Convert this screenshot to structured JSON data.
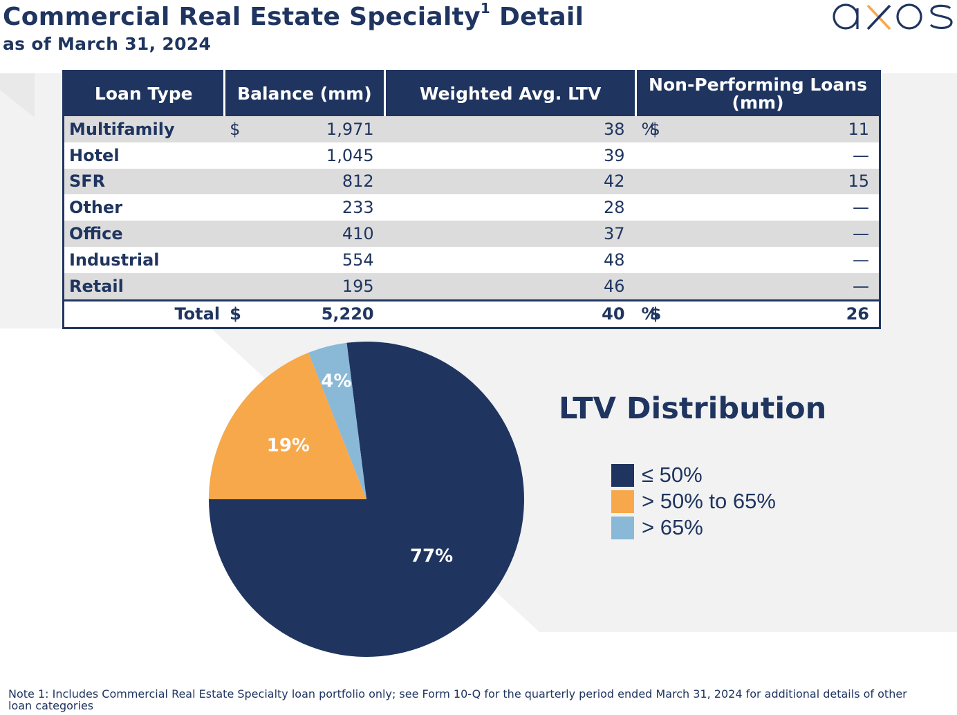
{
  "header": {
    "title": "Commercial Real Estate Specialty",
    "title_superscript": "1",
    "title_suffix": "Detail",
    "subtitle": "as of March 31, 2024",
    "logo_text": "axos"
  },
  "table": {
    "columns": [
      "Loan Type",
      "Balance (mm)",
      "Weighted Avg. LTV",
      "Non-Performing Loans (mm)"
    ],
    "rows": [
      {
        "type": "Multifamily",
        "cur1": "$",
        "balance": "1,971",
        "ltv": "38",
        "pct": "%",
        "cur2": "$",
        "npl": "11"
      },
      {
        "type": "Hotel",
        "cur1": "",
        "balance": "1,045",
        "ltv": "39",
        "pct": "",
        "cur2": "",
        "npl": "—"
      },
      {
        "type": "SFR",
        "cur1": "",
        "balance": "812",
        "ltv": "42",
        "pct": "",
        "cur2": "",
        "npl": "15"
      },
      {
        "type": "Other",
        "cur1": "",
        "balance": "233",
        "ltv": "28",
        "pct": "",
        "cur2": "",
        "npl": "—"
      },
      {
        "type": "Office",
        "cur1": "",
        "balance": "410",
        "ltv": "37",
        "pct": "",
        "cur2": "",
        "npl": "—"
      },
      {
        "type": "Industrial",
        "cur1": "",
        "balance": "554",
        "ltv": "48",
        "pct": "",
        "cur2": "",
        "npl": "—"
      },
      {
        "type": "Retail",
        "cur1": "",
        "balance": "195",
        "ltv": "46",
        "pct": "",
        "cur2": "",
        "npl": "—"
      }
    ],
    "total": {
      "type": "Total",
      "cur1": "$",
      "balance": "5,220",
      "ltv": "40",
      "pct": "%",
      "cur2": "$",
      "npl": "26"
    }
  },
  "chart_data": {
    "type": "pie",
    "title": "LTV Distribution",
    "slices": [
      {
        "label": "≤ 50%",
        "value": 77,
        "display": "77%",
        "color": "#1f3560",
        "label_color": "#ffffff"
      },
      {
        "label": "> 50% to 65%",
        "value": 19,
        "display": "19%",
        "color": "#f7a84a",
        "label_color": "#ffffff"
      },
      {
        "label": "> 65%",
        "value": 4,
        "display": "4%",
        "color": "#8ab8d7",
        "label_color": "#ffffff"
      }
    ],
    "legend_position": "right"
  },
  "footnote": "Note 1: Includes Commercial Real Estate Specialty loan portfolio only; see Form 10-Q for the quarterly period ended March 31, 2024 for additional details of other loan categories",
  "colors": {
    "navy": "#1f3560",
    "orange": "#f7a84a",
    "light_blue": "#8ab8d7",
    "row_shade": "#dcdcdc",
    "background_shape": "#f2f2f2"
  }
}
